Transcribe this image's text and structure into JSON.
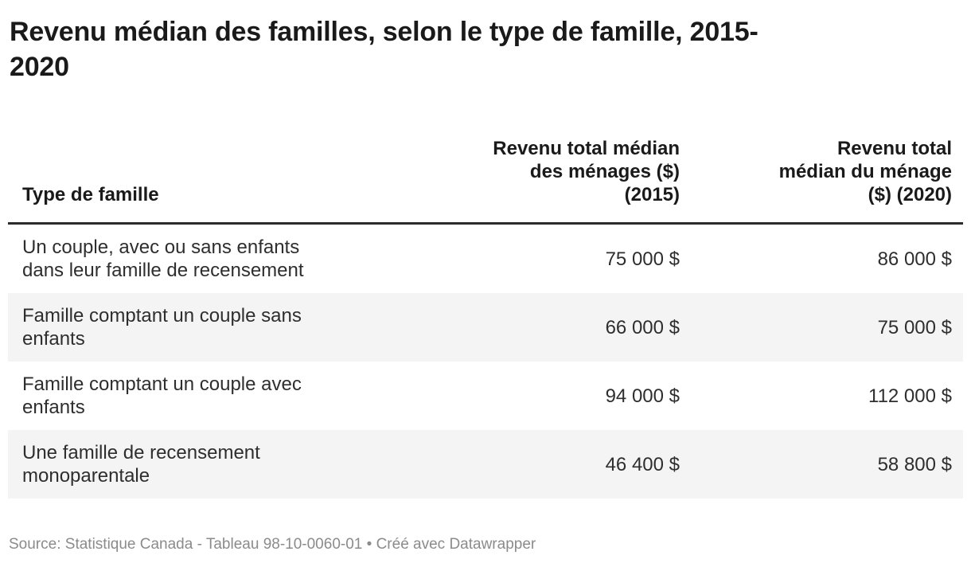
{
  "chart_data": {
    "type": "table",
    "title": "Revenu médian des familles, selon le type de famille, 2015-2020",
    "columns": [
      "Type de famille",
      "Revenu total médian des ménages ($) (2015)",
      "Revenu total médian du ménage ($) (2020)"
    ],
    "rows": [
      {
        "type_de_famille": "Un couple, avec ou sans enfants dans leur famille de recensement",
        "revenu_2015": 75000,
        "revenu_2020": 86000
      },
      {
        "type_de_famille": "Famille comptant un couple sans enfants",
        "revenu_2015": 66000,
        "revenu_2020": 75000
      },
      {
        "type_de_famille": "Famille comptant un couple avec enfants",
        "revenu_2015": 94000,
        "revenu_2020": 112000
      },
      {
        "type_de_famille": "Une famille de recensement monoparentale",
        "revenu_2015": 46400,
        "revenu_2020": 58800
      }
    ],
    "source": "Statistique Canada - Tableau 98-10-0060-01",
    "layout_hints": {
      "striped_rows": [
        2,
        4
      ],
      "value_alignment": "right",
      "header_alignment": "bottom"
    }
  },
  "display": {
    "title": "Revenu médian des familles, selon le type de famille, 2015-\n2020",
    "col_headers": [
      "Type de famille",
      "Revenu total médian\ndes ménages ($)\n(2015)",
      "Revenu total\nmédian du ménage\n($) (2020)"
    ],
    "rows": [
      {
        "label": "Un couple, avec ou sans enfants\ndans leur famille de recensement",
        "v2015": "75 000 $",
        "v2020": "86 000 $"
      },
      {
        "label": "Famille comptant un couple sans\nenfants",
        "v2015": "66 000 $",
        "v2020": "75 000 $"
      },
      {
        "label": "Famille comptant un couple avec\nenfants",
        "v2015": "94 000 $",
        "v2020": "112 000 $"
      },
      {
        "label": "Une famille de recensement\nmonoparentale",
        "v2015": "46 400 $",
        "v2020": "58 800 $"
      }
    ],
    "footer": {
      "source_label": "Source:",
      "source_text": "Statistique Canada - Tableau 98-10-0060-01",
      "separator": "•",
      "attribution": "Créé avec Datawrapper"
    }
  },
  "colors": {
    "title_text": "#1a1a1a",
    "body_text": "#2e2e2e",
    "header_border": "#2b2b2b",
    "row_stripe": "#f4f4f4",
    "footer_text": "#8b8b8b",
    "background": "#ffffff"
  }
}
